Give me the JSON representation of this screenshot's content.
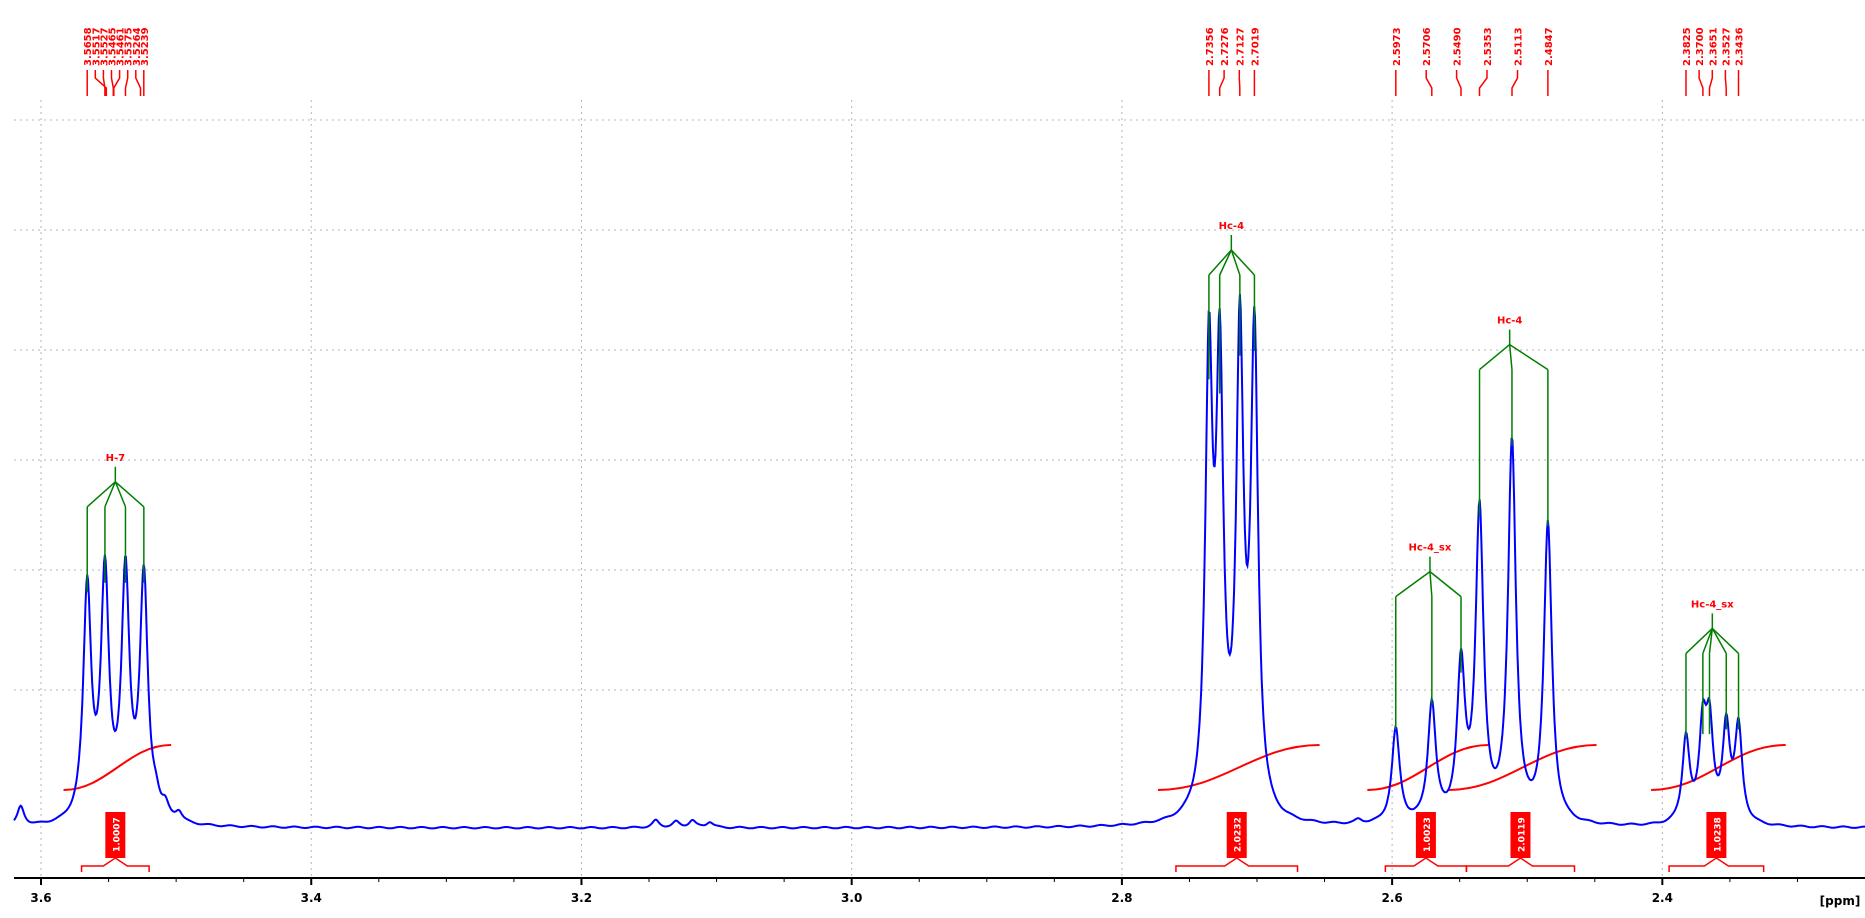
{
  "colors": {
    "spectrum": "#0000ff",
    "annotation": "#ff0000",
    "multiplet_tree": "#007f00",
    "axis": "#000000",
    "grid": "#b4b4b4"
  },
  "chart_data": {
    "type": "line",
    "title": "",
    "xlabel": "[ppm]",
    "ylabel": "",
    "x_axis_direction": "decreasing",
    "xlim": [
      3.62,
      2.25
    ],
    "ylim": [
      0,
      1.0
    ],
    "x_ticks": [
      {
        "value": 3.6,
        "label": "3.6"
      },
      {
        "value": 3.4,
        "label": "3.4"
      },
      {
        "value": 3.2,
        "label": "3.2"
      },
      {
        "value": 3.0,
        "label": "3.0"
      },
      {
        "value": 2.8,
        "label": "2.8"
      },
      {
        "value": 2.6,
        "label": "2.6"
      },
      {
        "value": 2.4,
        "label": "2.4"
      }
    ],
    "grid": true,
    "peak_labels": [
      "3.5658",
      "3.5517",
      "3.5527",
      "3.5465",
      "3.5461",
      "3.5375",
      "3.5264",
      "3.5239",
      "2.7356",
      "2.7276",
      "2.7127",
      "2.7019",
      "2.5973",
      "2.5706",
      "2.5490",
      "2.5353",
      "2.5113",
      "2.4847",
      "2.3825",
      "2.3700",
      "2.3651",
      "2.3527",
      "2.3436"
    ],
    "multiplets": [
      {
        "label": "H-7",
        "center": 3.545,
        "peaks": [
          3.5658,
          3.5527,
          3.5375,
          3.5239
        ],
        "heights": [
          0.49,
          0.51,
          0.51,
          0.51
        ],
        "width": 0.0035
      },
      {
        "label": "Hc-4",
        "center": 2.719,
        "peaks": [
          2.7356,
          2.7276,
          2.7127,
          2.7019
        ],
        "heights": [
          0.94,
          0.91,
          0.99,
          1.0
        ],
        "width": 0.0032
      },
      {
        "label": "Hc-4_sx",
        "center": 2.572,
        "peaks": [
          2.5973,
          2.5706,
          2.549
        ],
        "heights": [
          0.2,
          0.25,
          0.32
        ],
        "width": 0.0035
      },
      {
        "label": "Hc-4",
        "center": 2.513,
        "peaks": [
          2.5353,
          2.5113,
          2.4847
        ],
        "heights": [
          0.65,
          0.8,
          0.63
        ],
        "width": 0.0035
      },
      {
        "label": "Hc-4_sx",
        "center": 2.363,
        "peaks": [
          2.3825,
          2.37,
          2.3651,
          2.3527,
          2.3436
        ],
        "heights": [
          0.18,
          0.19,
          0.19,
          0.2,
          0.2
        ],
        "width": 0.0032
      }
    ],
    "small_peaks": [
      {
        "x": 3.615,
        "h": 0.04
      },
      {
        "x": 3.515,
        "h": 0.03
      },
      {
        "x": 3.508,
        "h": 0.025
      },
      {
        "x": 3.498,
        "h": 0.02
      },
      {
        "x": 3.145,
        "h": 0.015
      },
      {
        "x": 3.13,
        "h": 0.012
      },
      {
        "x": 3.118,
        "h": 0.015
      },
      {
        "x": 3.105,
        "h": 0.012
      },
      {
        "x": 2.625,
        "h": 0.008
      }
    ],
    "integrals": [
      {
        "label": "1.0007",
        "from": 3.57,
        "to": 3.52
      },
      {
        "label": "2.0232",
        "from": 2.76,
        "to": 2.67
      },
      {
        "label": "1.0023",
        "from": 2.605,
        "to": 2.545
      },
      {
        "label": "2.0119",
        "from": 2.545,
        "to": 2.465
      },
      {
        "label": "1.0238",
        "from": 2.395,
        "to": 2.325
      }
    ]
  }
}
